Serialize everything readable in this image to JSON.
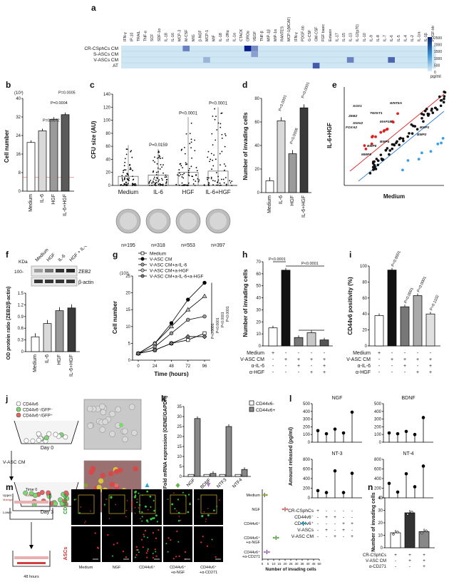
{
  "figure": {
    "panel_a": {
      "label": "a",
      "columns": [
        "IFN-γ",
        "IP-10",
        "TRAIL",
        "TNF-α",
        "SCF",
        "SDF-1α",
        "IL-18",
        "IL-16",
        "MCP-3",
        "M-CSF",
        "MIG",
        "β-NGF",
        "MCP-1",
        "MIF",
        "IL-18",
        "IL-2Rα",
        "IL-1α",
        "CTACK",
        "GROα",
        "VEGF",
        "TNF-β",
        "MIP-1β",
        "MIP-1α",
        "RANTES",
        "MCP-1(MCAF)",
        "IFN-γ",
        "PDGF-bb",
        "G-CSF",
        "GM-CSF",
        "FGF basic",
        "Eotaxin",
        "IL-17",
        "IL-15",
        "IL-13",
        "IL-12(p70)",
        "IL-10",
        "IL-9",
        "IL-8",
        "IL-7",
        "IL-6",
        "IL-5",
        "IL-4",
        "IL-2",
        "IL-1ra",
        "IL-1β",
        "PDGF-bb"
      ],
      "rows": [
        "CR-CSphCs CM",
        "S-ASCs CM",
        "V-ASCs CM",
        "AT"
      ],
      "scale_ticks": [
        "2500",
        "2000",
        "1500",
        "1000",
        "500",
        "0"
      ],
      "unit": "pg/ml",
      "highlights": [
        {
          "row": 0,
          "col": 9,
          "level": 0.5
        },
        {
          "row": 0,
          "col": 18,
          "level": 1.0
        },
        {
          "row": 0,
          "col": 19,
          "level": 0.45
        },
        {
          "row": 1,
          "col": 19,
          "level": 0.35
        },
        {
          "row": 2,
          "col": 33,
          "level": 0.5
        },
        {
          "row": 2,
          "col": 39,
          "level": 0.65
        },
        {
          "row": 3,
          "col": 28,
          "level": 0.7
        },
        {
          "row": 2,
          "col": 12,
          "level": 0.25
        }
      ]
    },
    "panel_b": {
      "label": "b",
      "exponent": "(10³)",
      "ylabel": "Cell number",
      "yticks": [
        "0",
        "8",
        "16",
        "24",
        "32",
        "40"
      ],
      "categories": [
        "Medium",
        "IL-6",
        "HGF",
        "IL-6+HGF"
      ],
      "values": [
        21,
        26,
        31,
        33
      ],
      "pvalues": [
        "P=0.0072",
        "P=0.0004",
        "P=0.0005"
      ]
    },
    "panel_c": {
      "label": "c",
      "ylabel": "CFU size (AU)",
      "yticks": [
        "0",
        "20",
        "40",
        "60",
        "80",
        "100",
        "120",
        "140"
      ],
      "categories": [
        "Medium",
        "IL-6",
        "HGF",
        "IL-6+HGF"
      ],
      "pvalues": [
        "P=0.0159",
        "P<0.0001",
        "P<0.0001"
      ],
      "n": [
        "n=195",
        "n=318",
        "n=553",
        "n=397"
      ]
    },
    "panel_d": {
      "label": "d",
      "ylabel": "Number of invading cells",
      "yticks": [
        "0",
        "20",
        "40",
        "60",
        "80"
      ],
      "categories": [
        "Medium",
        "IL-6",
        "HGF",
        "IL-6+HGF"
      ],
      "values": [
        10,
        61,
        33,
        72
      ],
      "pvalues": [
        "P<0.0001",
        "P=0.0006",
        "P<0.0001"
      ]
    },
    "panel_e": {
      "label": "e",
      "xlabel": "Medium",
      "ylabel": "IL-6+HGF",
      "genes": [
        "ZEB2",
        "SOX1",
        "SNAI2",
        "WNT5A",
        "FOXA2",
        "TWIST1",
        "MAP1B",
        "BMP1",
        "BMP2",
        "BMP4",
        "BMP5",
        "MMP9"
      ]
    },
    "panel_f": {
      "label": "f",
      "kda": "KDa",
      "marker": "100-",
      "lanes": [
        "Medium",
        "HGF",
        "IL-6",
        "HGF + IL-6"
      ],
      "bands": [
        "ZEB2",
        "β-actin"
      ],
      "ylabel": "OD protein ratio (ZEB2/β-actin)",
      "yticks": [
        "0",
        "0.3",
        "0.6",
        "0.9",
        "1.2",
        "1.5"
      ],
      "categories": [
        "Medium",
        "IL-6",
        "HGF",
        "IL-6+HGF"
      ],
      "values": [
        0.38,
        0.72,
        1.05,
        1.12
      ]
    },
    "panel_g": {
      "label": "g",
      "exponent": "(10³)",
      "ylabel": "Cell number",
      "xlabel": "Time (hours)",
      "xticks": [
        "0",
        "24",
        "48",
        "72",
        "96"
      ],
      "yticks": [
        "0",
        "5",
        "10",
        "15",
        "20",
        "25"
      ],
      "legend": [
        "Medium",
        "V-ASC CM",
        "V-ASC CM+a-IL-6",
        "V-ASC CM+a-HGF",
        "V-ASC CM+a-IL-6+a-HGF"
      ],
      "pvalues": [
        "P<0.0001",
        "P<0.0001",
        "P<0.0001",
        "P<0.0001"
      ]
    },
    "panel_h": {
      "label": "h",
      "ylabel": "Number of invading cells",
      "yticks": [
        "0",
        "10",
        "20",
        "30",
        "40",
        "50",
        "60",
        "70"
      ],
      "values": [
        15,
        63,
        7,
        11,
        5
      ],
      "pvalues": [
        "P<0.0001",
        "P<0.0001"
      ],
      "conditions": [
        "Medium",
        "V-ASC CM",
        "α-IL-6",
        "α-HGF"
      ],
      "signs": [
        [
          "+",
          "-",
          "-",
          "-",
          "-"
        ],
        [
          "-",
          "+",
          "+",
          "+",
          "+"
        ],
        [
          "-",
          "-",
          "+",
          "-",
          "+"
        ],
        [
          "-",
          "-",
          "-",
          "+",
          "+"
        ]
      ]
    },
    "panel_i": {
      "label": "i",
      "ylabel": "CD44v6 positivity (%)",
      "yticks": [
        "0",
        "20",
        "40",
        "60",
        "80",
        "100"
      ],
      "values": [
        38,
        95,
        49,
        63,
        40
      ],
      "pvalues": [
        "P<0.0001",
        "P<0.0001",
        "P<0.0001",
        "P=0.1102"
      ],
      "conditions": [
        "Medium",
        "V-ASC CM",
        "α-IL-6",
        "α-HGF"
      ],
      "signs": [
        [
          "+",
          "-",
          "-",
          "-",
          "-"
        ],
        [
          "-",
          "+",
          "+",
          "+",
          "+"
        ],
        [
          "-",
          "-",
          "+",
          "-",
          "+"
        ],
        [
          "-",
          "-",
          "-",
          "+",
          "+"
        ]
      ]
    },
    "panel_j": {
      "label": "j",
      "legend": [
        "CD44v6",
        "CD44v6⁻/GFP⁻",
        "CD44v6⁺/GFP⁺"
      ],
      "day0": "Day 0",
      "day3": "Day 3",
      "treatment": "V-ASC CM"
    },
    "panel_k": {
      "label": "k",
      "ylabel": "Fold mRNA expression (GENE/GAPDH)",
      "yticks": [
        "0",
        "5",
        "10",
        "15",
        "20",
        "25",
        "30",
        "35"
      ],
      "categories": [
        "NGF",
        "BDNF",
        "NTF3",
        "NTF4"
      ],
      "legend": [
        "CD44v6-",
        "CD44v6+"
      ],
      "series_minus": [
        1,
        1,
        1,
        1
      ],
      "series_plus": [
        29,
        1.5,
        25,
        3.5
      ]
    },
    "panel_l": {
      "label": "l",
      "ylabel": "Amount released (pg/ml)",
      "subpanels": [
        {
          "title": "NGF",
          "yticks": [
            "0",
            "100",
            "200",
            "300",
            "400",
            "500"
          ],
          "values": [
            150,
            110,
            170,
            120,
            390
          ]
        },
        {
          "title": "BDNF",
          "yticks": [
            "0",
            "100",
            "200",
            "300",
            "400",
            "500"
          ],
          "values": [
            120,
            110,
            140,
            100,
            320
          ]
        },
        {
          "title": "NT-3",
          "yticks": [
            "0",
            "200",
            "400",
            "600",
            "800"
          ],
          "values": [
            150,
            110,
            560,
            110,
            510
          ]
        },
        {
          "title": "NT-4",
          "yticks": [
            "0",
            "200",
            "400",
            "600",
            "800"
          ],
          "values": [
            300,
            120,
            500,
            230,
            660
          ]
        }
      ],
      "conditions": [
        "CR-CSphCs",
        "CD44v6⁻",
        "CD44v6⁺",
        "V-ASCs",
        "V-ASC CM"
      ],
      "signs": [
        [
          "+",
          "-",
          "-",
          "-",
          "-"
        ],
        [
          "-",
          "+",
          "+",
          "-",
          "-"
        ],
        [
          "-",
          "-",
          "-",
          "+",
          "+"
        ],
        [
          "-",
          "+",
          "-",
          "+",
          "-"
        ],
        [
          "-",
          "-",
          "+",
          "-",
          "+"
        ]
      ]
    },
    "panel_m": {
      "label": "m",
      "schematic": {
        "time0": "Time 0",
        "time48": "48 hours",
        "upper": "Upper",
        "lower": "Lower",
        "matrigel": "Matrigel",
        "ascs_tag": "ASCs"
      },
      "channel_labels": [
        "ASCs",
        "CD44v6+"
      ],
      "columns": [
        "Medium",
        "NGF",
        "CD44v6⁺",
        "CD44v6⁺ +α-NGF",
        "CD44v6⁺ +α-CD271"
      ],
      "marker_colors": [
        "#8a9a3a",
        "#e06c6c",
        "#2aa8c8",
        "#6ab04c",
        "#b57ac8"
      ],
      "dot_categories": [
        "Medium",
        "NGF",
        "CD44v6⁺",
        "CD44v6⁺ +α-NGF",
        "CD44v6⁺ +α-CD271"
      ],
      "dot_values": [
        2,
        20,
        36,
        12,
        4
      ],
      "dot_xlabel": "Number of invading cells",
      "dot_xticks": [
        "0",
        "5",
        "10",
        "15",
        "20",
        "25",
        "30",
        "35",
        "40",
        "45",
        "50"
      ]
    },
    "panel_n": {
      "label": "n",
      "ylabel": "Number of invading cells",
      "yticks": [
        "0",
        "10",
        "20",
        "30",
        "40"
      ],
      "values": [
        12,
        28,
        13
      ],
      "conditions": [
        "CR-CSphCs",
        "V-ASC CM",
        "α-CD271"
      ],
      "signs": [
        [
          "+",
          "+",
          "+"
        ],
        [
          "-",
          "+",
          "+"
        ],
        [
          "-",
          "-",
          "+"
        ]
      ]
    }
  }
}
